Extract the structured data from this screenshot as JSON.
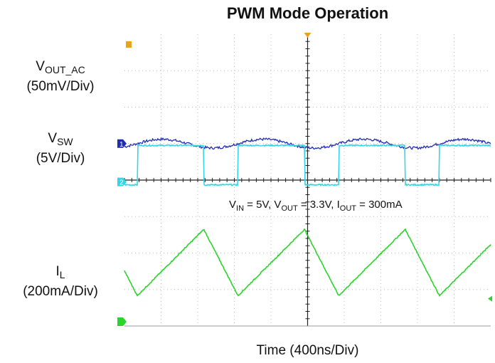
{
  "chart_data": {
    "type": "line",
    "title": "PWM Mode Operation",
    "xlabel": "Time (400ns/Div)",
    "time_per_div_ns": 400,
    "divisions_x": 10,
    "divisions_y": 8,
    "grid": true,
    "annotation": {
      "vin_label": "V",
      "vin_sub": "IN",
      "vin_value": " = 5V, ",
      "vout_label": "V",
      "vout_sub": "OUT",
      "vout_value": " = 3.3V, ",
      "iout_label": "I",
      "iout_sub": "OUT",
      "iout_value": " = 300mA"
    },
    "switching_period_ns": 1100,
    "duty_cycle": 0.66,
    "series": [
      {
        "label_main": "V",
        "label_sub": "OUT_AC",
        "scale": "(50mV/Div)",
        "marker": "1",
        "color": "#1f2db5",
        "waveform": "ripple",
        "ground_div": 5.0,
        "ripple_div": 0.12
      },
      {
        "label_main": "V",
        "label_sub": "SW",
        "scale": "(5V/Div)",
        "marker": "2",
        "color": "#33d6e6",
        "waveform": "square",
        "ground_div": 3.95,
        "amplitude_div": 1.0
      },
      {
        "label_main": "I",
        "label_sub": "L",
        "scale": "(200mA/Div)",
        "marker": "",
        "color": "#2bd42b",
        "waveform": "triangle",
        "ground_div": 0.0,
        "peak_div": 2.65,
        "valley_div": 0.83
      }
    ]
  }
}
